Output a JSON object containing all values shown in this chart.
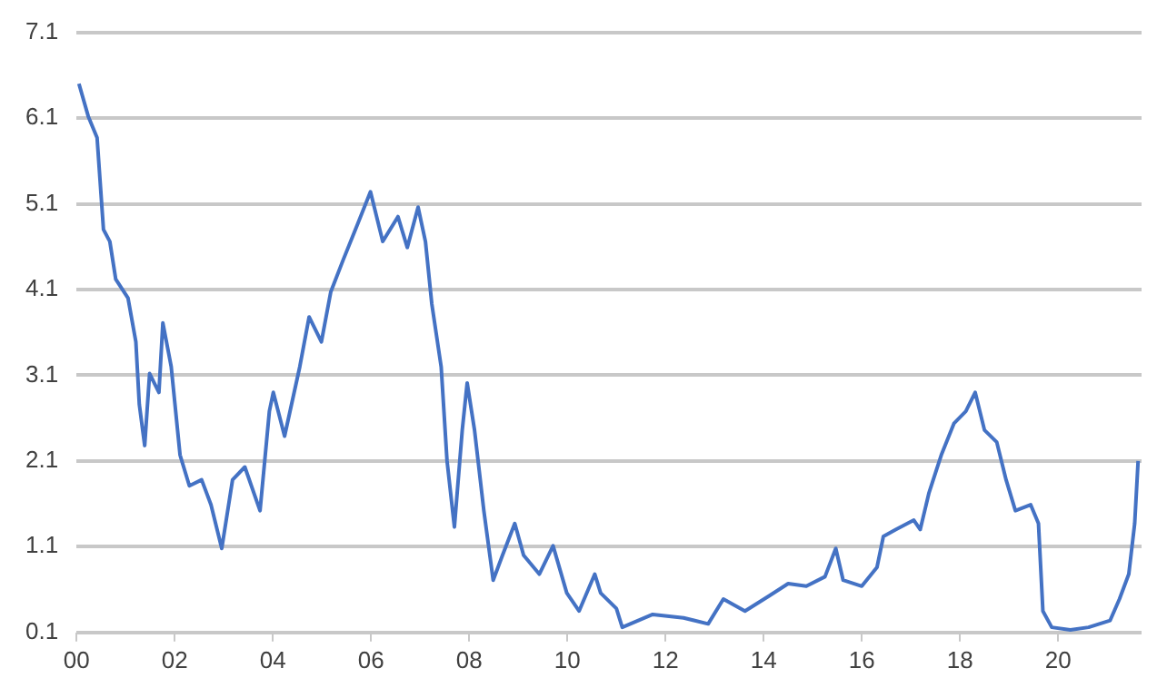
{
  "chart_data": {
    "type": "line",
    "xlim": [
      0,
      21.7
    ],
    "ylim": [
      0.1,
      7.1
    ],
    "xticks": [
      {
        "value": 0,
        "label": "00"
      },
      {
        "value": 2,
        "label": "02"
      },
      {
        "value": 4,
        "label": "04"
      },
      {
        "value": 6,
        "label": "06"
      },
      {
        "value": 8,
        "label": "08"
      },
      {
        "value": 10,
        "label": "10"
      },
      {
        "value": 12,
        "label": "12"
      },
      {
        "value": 14,
        "label": "14"
      },
      {
        "value": 16,
        "label": "16"
      },
      {
        "value": 18,
        "label": "18"
      },
      {
        "value": 20,
        "label": "20"
      }
    ],
    "yticks": [
      0.1,
      1.1,
      2.1,
      3.1,
      4.1,
      5.1,
      6.1,
      7.1
    ],
    "grid": "y",
    "legend": false,
    "marker": "none",
    "line_style": "solid",
    "series": [
      {
        "color": "#4472c4",
        "x": [
          0.05,
          0.24,
          0.42,
          0.55,
          0.68,
          0.8,
          1.05,
          1.21,
          1.28,
          1.39,
          1.49,
          1.68,
          1.76,
          1.93,
          2.11,
          2.3,
          2.55,
          2.74,
          2.96,
          3.18,
          3.43,
          3.74,
          3.93,
          4.01,
          4.24,
          4.55,
          4.74,
          4.99,
          5.18,
          5.43,
          5.74,
          5.99,
          6.24,
          6.55,
          6.74,
          6.96,
          7.11,
          7.24,
          7.43,
          7.55,
          7.7,
          7.86,
          7.96,
          8.11,
          8.3,
          8.49,
          8.68,
          8.93,
          9.11,
          9.43,
          9.71,
          9.99,
          10.24,
          10.56,
          10.68,
          11.0,
          11.12,
          11.74,
          12.37,
          12.87,
          13.18,
          13.62,
          14.12,
          14.5,
          14.87,
          15.25,
          15.47,
          15.62,
          16.0,
          16.31,
          16.44,
          16.69,
          17.06,
          17.19,
          17.37,
          17.62,
          17.88,
          18.12,
          18.31,
          18.5,
          18.75,
          18.94,
          19.13,
          19.44,
          19.6,
          19.69,
          19.87,
          20.25,
          20.62,
          21.06,
          21.25,
          21.44,
          21.56,
          21.63
        ],
        "values": [
          6.5,
          6.12,
          5.87,
          4.8,
          4.66,
          4.22,
          4.0,
          3.49,
          2.76,
          2.28,
          3.12,
          2.9,
          3.71,
          3.2,
          2.17,
          1.81,
          1.88,
          1.59,
          1.08,
          1.88,
          2.03,
          1.52,
          2.68,
          2.9,
          2.39,
          3.2,
          3.78,
          3.49,
          4.07,
          4.44,
          4.88,
          5.24,
          4.66,
          4.95,
          4.59,
          5.06,
          4.66,
          3.93,
          3.2,
          2.1,
          1.33,
          2.46,
          3.01,
          2.46,
          1.52,
          0.71,
          1.0,
          1.37,
          1.0,
          0.78,
          1.11,
          0.56,
          0.35,
          0.78,
          0.56,
          0.38,
          0.16,
          0.31,
          0.27,
          0.2,
          0.49,
          0.35,
          0.53,
          0.67,
          0.64,
          0.75,
          1.08,
          0.71,
          0.64,
          0.86,
          1.22,
          1.3,
          1.41,
          1.3,
          1.73,
          2.17,
          2.54,
          2.68,
          2.9,
          2.46,
          2.32,
          1.88,
          1.52,
          1.59,
          1.37,
          0.35,
          0.16,
          0.13,
          0.16,
          0.24,
          0.49,
          0.78,
          1.37,
          2.1
        ]
      }
    ]
  }
}
